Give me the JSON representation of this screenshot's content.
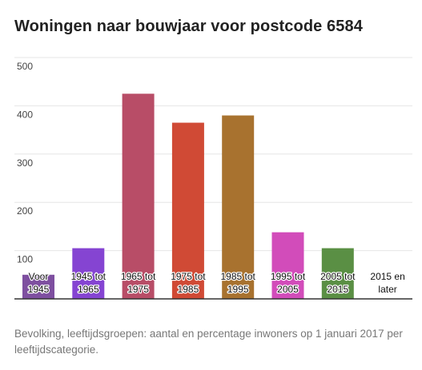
{
  "title": "Woningen naar bouwjaar voor postcode 6584",
  "caption": "Bevolking, leeftijdsgroepen: aantal en percentage inwoners op 1 januari 2017 per leeftijdscategorie.",
  "chart_data": {
    "type": "bar",
    "title": "Woningen naar bouwjaar voor postcode 6584",
    "xlabel": "",
    "ylabel": "",
    "ylim": [
      0,
      500
    ],
    "yticks": [
      100,
      200,
      300,
      400,
      500
    ],
    "grid": true,
    "legend": "none",
    "categories": [
      [
        "Voor",
        "1945"
      ],
      [
        "1945 tot",
        "1965"
      ],
      [
        "1965 tot",
        "1975"
      ],
      [
        "1975 tot",
        "1985"
      ],
      [
        "1985 tot",
        "1995"
      ],
      [
        "1995 tot",
        "2005"
      ],
      [
        "2005 tot",
        "2015"
      ],
      [
        "2015 en",
        "later"
      ]
    ],
    "values": [
      50,
      105,
      425,
      365,
      380,
      138,
      105,
      0
    ],
    "colors": [
      "#7e4fa0",
      "#8544d2",
      "#b84d67",
      "#d04a35",
      "#a8722f",
      "#d24cba",
      "#5a8f44",
      "#999999"
    ]
  }
}
